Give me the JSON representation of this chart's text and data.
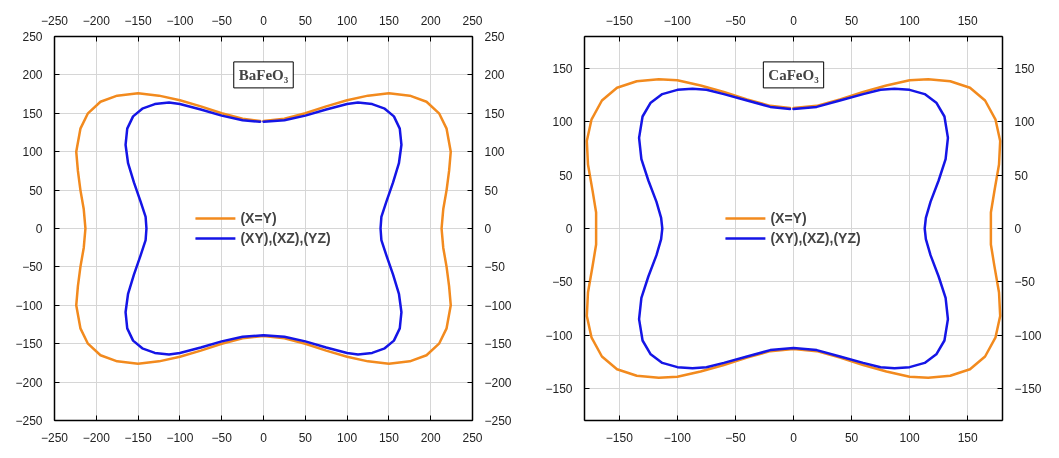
{
  "chart_data": [
    {
      "type": "line",
      "title": "BaFeO₃",
      "xlim": [
        -250,
        250
      ],
      "ylim": [
        -250,
        250
      ],
      "xticks": [
        -250,
        -200,
        -150,
        -100,
        -50,
        0,
        50,
        100,
        150,
        200,
        250
      ],
      "yticks": [
        -250,
        -200,
        -150,
        -100,
        -50,
        0,
        50,
        100,
        150,
        200,
        250
      ],
      "x2lim": [
        -250,
        250
      ],
      "x2ticks": [
        -250,
        -200,
        -150,
        -100,
        -50,
        0,
        50,
        100,
        150,
        200,
        250
      ],
      "y2lim": [
        -250,
        250
      ],
      "y2ticks": [
        -250,
        -200,
        -150,
        -100,
        -50,
        0,
        50,
        100,
        150,
        200,
        250
      ],
      "grid": true,
      "legend": "center",
      "line_style": "solid",
      "marker": "none",
      "series": [
        {
          "name": "(X=Y)",
          "color": "#f28a1e",
          "x": [
            0,
            25,
            50,
            75,
            100,
            125,
            150,
            175,
            195,
            210,
            219,
            224,
            222,
            219,
            215,
            213,
            215,
            219,
            222,
            224,
            219,
            210,
            195,
            175,
            150,
            125,
            100,
            75,
            50,
            25,
            0,
            -25,
            -50,
            -75,
            -100,
            -125,
            -150,
            -175,
            -195,
            -210,
            -219,
            -224,
            -222,
            -219,
            -215,
            -213,
            -215,
            -219,
            -222,
            -224,
            -219,
            -210,
            -195,
            -175,
            -150,
            -125,
            -100,
            -75,
            -50,
            -25,
            -4
          ],
          "values": [
            140,
            143,
            150,
            159,
            167,
            173,
            176,
            173,
            165,
            150,
            130,
            100,
            75,
            50,
            25,
            0,
            -25,
            -50,
            -75,
            -100,
            -130,
            -150,
            -165,
            -173,
            -176,
            -173,
            -167,
            -159,
            -150,
            -143,
            -140,
            -143,
            -150,
            -159,
            -167,
            -173,
            -176,
            -173,
            -165,
            -150,
            -130,
            -100,
            -75,
            -50,
            -25,
            0,
            25,
            50,
            75,
            100,
            130,
            150,
            165,
            173,
            176,
            173,
            167,
            159,
            150,
            143,
            140
          ]
        },
        {
          "name": "(XY),(XZ),(YZ)",
          "color": "#1515e6",
          "x": [
            0,
            25,
            50,
            75,
            100,
            113,
            130,
            145,
            156,
            163,
            165,
            162,
            155,
            147,
            141,
            140,
            141,
            147,
            155,
            162,
            165,
            163,
            156,
            145,
            130,
            113,
            100,
            75,
            50,
            25,
            0,
            -25,
            -50,
            -75,
            -100,
            -113,
            -130,
            -145,
            -156,
            -163,
            -165,
            -162,
            -155,
            -147,
            -141,
            -140,
            -141,
            -147,
            -155,
            -162,
            -165,
            -163,
            -156,
            -145,
            -130,
            -113,
            -100,
            -75,
            -50,
            -25,
            -4
          ],
          "values": [
            139,
            141,
            147,
            155,
            162,
            164,
            162,
            156,
            146,
            130,
            109,
            85,
            60,
            35,
            15,
            0,
            -15,
            -35,
            -60,
            -85,
            -109,
            -130,
            -146,
            -156,
            -162,
            -164,
            -162,
            -155,
            -147,
            -141,
            -139,
            -141,
            -147,
            -155,
            -162,
            -164,
            -162,
            -156,
            -146,
            -130,
            -109,
            -85,
            -60,
            -35,
            -15,
            0,
            15,
            35,
            60,
            85,
            109,
            130,
            146,
            156,
            162,
            164,
            162,
            155,
            147,
            141,
            139
          ]
        }
      ]
    },
    {
      "type": "line",
      "title": "CaFeO₃",
      "xlim": [
        -180,
        180
      ],
      "ylim": [
        -180,
        180
      ],
      "xticks": [
        -150,
        -100,
        -50,
        0,
        50,
        100,
        150
      ],
      "yticks": [
        -150,
        -100,
        -50,
        0,
        50,
        100,
        150
      ],
      "x2lim": [
        -180,
        180
      ],
      "x2ticks": [
        -150,
        -100,
        -50,
        0,
        50,
        100,
        150
      ],
      "y2lim": [
        -180,
        180
      ],
      "y2ticks": [
        -150,
        -100,
        -50,
        0,
        50,
        100,
        150
      ],
      "grid": true,
      "legend": "center",
      "line_style": "solid",
      "marker": "none",
      "series": [
        {
          "name": "(X=Y)",
          "color": "#f28a1e",
          "x": [
            0,
            20,
            40,
            60,
            80,
            100,
            116,
            135,
            152,
            165,
            174,
            178,
            177,
            173,
            170,
            170,
            170,
            173,
            177,
            178,
            174,
            165,
            152,
            135,
            116,
            100,
            80,
            60,
            40,
            20,
            0,
            -20,
            -40,
            -60,
            -80,
            -100,
            -116,
            -135,
            -152,
            -165,
            -174,
            -178,
            -177,
            -173,
            -170,
            -170,
            -170,
            -173,
            -177,
            -178,
            -174,
            -165,
            -152,
            -135,
            -116,
            -100,
            -80,
            -60,
            -40,
            -20,
            -3
          ],
          "values": [
            113,
            115,
            121,
            128,
            134,
            139,
            140,
            138,
            132,
            120,
            102,
            82,
            60,
            35,
            15,
            0,
            -15,
            -35,
            -60,
            -82,
            -102,
            -120,
            -132,
            -138,
            -140,
            -139,
            -134,
            -128,
            -121,
            -115,
            -113,
            -115,
            -121,
            -128,
            -134,
            -139,
            -140,
            -138,
            -132,
            -120,
            -102,
            -82,
            -60,
            -35,
            -15,
            0,
            15,
            35,
            60,
            82,
            102,
            120,
            132,
            138,
            140,
            139,
            134,
            128,
            121,
            115,
            113
          ]
        },
        {
          "name": "(XY),(XZ),(YZ)",
          "color": "#1515e6",
          "x": [
            0,
            20,
            40,
            60,
            75,
            87,
            100,
            113,
            123,
            130,
            133,
            131,
            125,
            118,
            114,
            113,
            114,
            118,
            125,
            131,
            133,
            130,
            123,
            113,
            100,
            87,
            75,
            60,
            40,
            20,
            0,
            -20,
            -40,
            -60,
            -75,
            -87,
            -100,
            -113,
            -123,
            -130,
            -133,
            -131,
            -125,
            -118,
            -114,
            -113,
            -114,
            -118,
            -125,
            -131,
            -133,
            -130,
            -123,
            -113,
            -100,
            -87,
            -75,
            -60,
            -40,
            -20,
            -3
          ],
          "values": [
            112,
            114,
            120,
            126,
            130,
            131,
            130,
            126,
            118,
            105,
            85,
            65,
            45,
            25,
            10,
            0,
            -10,
            -25,
            -45,
            -65,
            -85,
            -105,
            -118,
            -126,
            -130,
            -131,
            -130,
            -126,
            -120,
            -114,
            -112,
            -114,
            -120,
            -126,
            -130,
            -131,
            -130,
            -126,
            -118,
            -105,
            -85,
            -65,
            -45,
            -25,
            -10,
            0,
            10,
            25,
            45,
            65,
            85,
            105,
            118,
            126,
            130,
            131,
            130,
            126,
            120,
            114,
            112
          ]
        }
      ]
    }
  ]
}
